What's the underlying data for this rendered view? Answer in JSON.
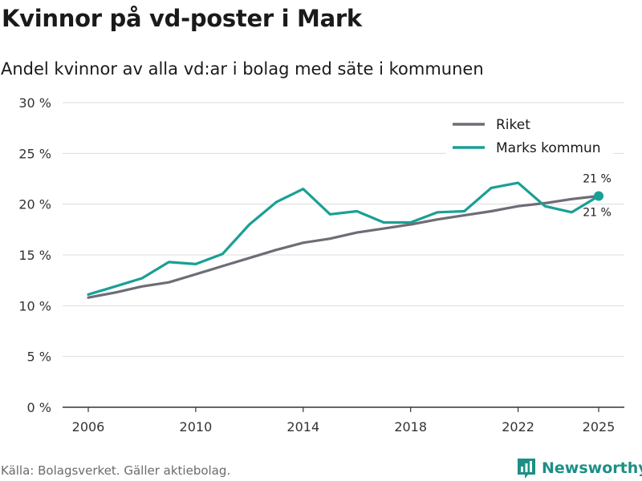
{
  "header": {
    "title": "Kvinnor på vd-poster i Mark",
    "subtitle": "Andel kvinnor av alla vd:ar i bolag med säte i kommunen"
  },
  "footer": {
    "source": "Källa: Bolagsverket. Gäller aktiebolag.",
    "brand": "Newsworthy",
    "brand_icon": "bar-chart-icon"
  },
  "colors": {
    "riket": "#6e6c74",
    "kommun": "#1a9f95",
    "grid": "#dcdcdc",
    "axis": "#333333",
    "brand": "#1d8f86"
  },
  "chart_data": {
    "type": "line",
    "title": "Kvinnor på vd-poster i Mark",
    "subtitle": "Andel kvinnor av alla vd:ar i bolag med säte i kommunen",
    "xlabel": "",
    "ylabel": "",
    "x": [
      2006,
      2007,
      2008,
      2009,
      2010,
      2011,
      2012,
      2013,
      2014,
      2015,
      2016,
      2017,
      2018,
      2019,
      2020,
      2021,
      2022,
      2023,
      2024,
      2025
    ],
    "x_ticks": [
      2006,
      2010,
      2014,
      2018,
      2022,
      2025
    ],
    "y_ticks": [
      0,
      5,
      10,
      15,
      20,
      25,
      30
    ],
    "y_tick_labels": [
      "0 %",
      "5 %",
      "10 %",
      "15 %",
      "20 %",
      "25 %",
      "30 %"
    ],
    "ylim": [
      0,
      30
    ],
    "xlim": [
      2006,
      2025
    ],
    "grid": true,
    "legend_position": "top-right",
    "series": [
      {
        "name": "Riket",
        "color": "#6e6c74",
        "values": [
          10.8,
          11.3,
          11.9,
          12.3,
          13.1,
          13.9,
          14.7,
          15.5,
          16.2,
          16.6,
          17.2,
          17.6,
          18.0,
          18.5,
          18.9,
          19.3,
          19.8,
          20.1,
          20.5,
          20.8
        ],
        "end_label": "21 %",
        "end_label_side": "above"
      },
      {
        "name": "Marks kommun",
        "color": "#1a9f95",
        "values": [
          11.1,
          11.9,
          12.7,
          14.3,
          14.1,
          15.1,
          18.0,
          20.2,
          21.5,
          19.0,
          19.3,
          18.2,
          18.2,
          19.2,
          19.3,
          21.6,
          22.1,
          19.8,
          19.2,
          20.8
        ],
        "end_label": "21 %",
        "end_label_side": "below"
      }
    ]
  }
}
